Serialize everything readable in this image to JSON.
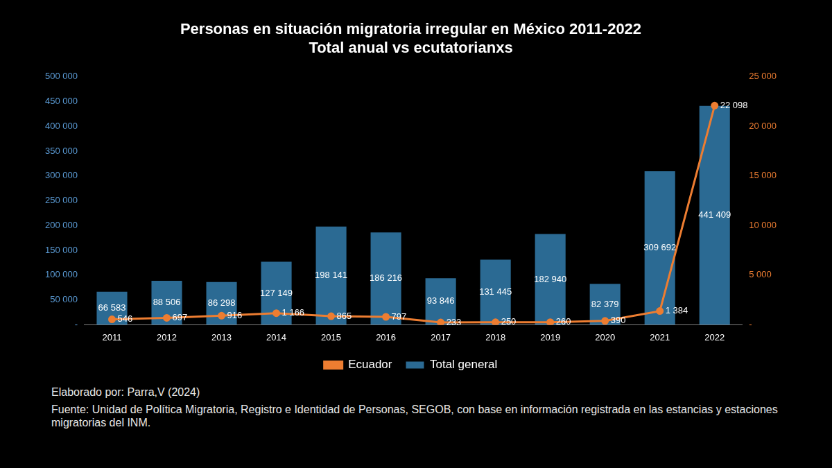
{
  "chart_data": {
    "type": "bar",
    "title": "Personas en situación migratoria irregular en México 2011-2022",
    "subtitle": "Total anual vs ecutatorianxs",
    "categories": [
      "2011",
      "2012",
      "2013",
      "2014",
      "2015",
      "2016",
      "2017",
      "2018",
      "2019",
      "2020",
      "2021",
      "2022"
    ],
    "series": [
      {
        "name": "Total general",
        "type": "bar",
        "color": "#2b6a93",
        "values": [
          66583,
          88506,
          86298,
          127149,
          198141,
          186216,
          93846,
          131445,
          182940,
          82379,
          309692,
          441409
        ],
        "value_labels": [
          "66 583",
          "88 506",
          "86 298",
          "127 149",
          "198 141",
          "186 216",
          "93 846",
          "131 445",
          "182 940",
          "82 379",
          "309 692",
          "441 409"
        ]
      },
      {
        "name": "Ecuador",
        "type": "line",
        "color": "#ed7d31",
        "axis": "y2",
        "marker": "circle",
        "values": [
          546,
          697,
          916,
          1166,
          865,
          797,
          233,
          250,
          260,
          390,
          1384,
          22098
        ],
        "value_labels": [
          "546",
          "697",
          "916",
          "1 166",
          "865",
          "797",
          "233",
          "250",
          "260",
          "390",
          "1 384",
          "22 098"
        ]
      }
    ],
    "ylim": [
      0,
      500000
    ],
    "yticks": [
      {
        "value": 0,
        "label": "-"
      },
      {
        "value": 50000,
        "label": "50 000"
      },
      {
        "value": 100000,
        "label": "100 000"
      },
      {
        "value": 150000,
        "label": "150 000"
      },
      {
        "value": 200000,
        "label": "200 000"
      },
      {
        "value": 250000,
        "label": "250 000"
      },
      {
        "value": 300000,
        "label": "300 000"
      },
      {
        "value": 350000,
        "label": "350 000"
      },
      {
        "value": 400000,
        "label": "400 000"
      },
      {
        "value": 450000,
        "label": "450 000"
      },
      {
        "value": 500000,
        "label": "500 000"
      }
    ],
    "y2lim": [
      0,
      25000
    ],
    "y2ticks": [
      {
        "value": 0,
        "label": "-"
      },
      {
        "value": 5000,
        "label": "5 000"
      },
      {
        "value": 10000,
        "label": "10 000"
      },
      {
        "value": 15000,
        "label": "15 000"
      },
      {
        "value": 20000,
        "label": "20 000"
      },
      {
        "value": 25000,
        "label": "25 000"
      }
    ],
    "grid": false,
    "legend": "bottom",
    "data_labels": true,
    "annotations": [
      "Elaborado por: Parra,V (2024)",
      "Fuente: Unidad de Política Migratoria, Registro e Identidad de Personas, SEGOB, con base en información registrada en las estancias y estaciones migratorias del INM."
    ]
  }
}
